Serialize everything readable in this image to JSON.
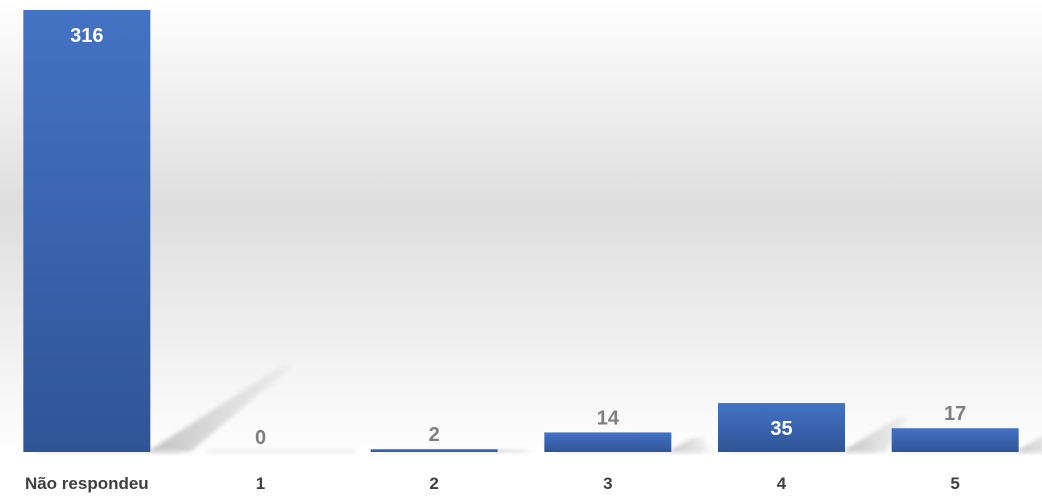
{
  "chart_data": {
    "type": "bar",
    "categories": [
      "Não respondeu",
      "1",
      "2",
      "3",
      "4",
      "5"
    ],
    "values": [
      316,
      0,
      2,
      14,
      35,
      17
    ],
    "title": "",
    "xlabel": "",
    "ylabel": "",
    "ylim": [
      0,
      316
    ],
    "grid": false,
    "legend": "none",
    "colors": {
      "bar_top": "#4472c4",
      "bar_bottom": "#2f5597",
      "label_inside": "#ffffff",
      "label_outside": "#7f7f7f",
      "category_text": "#404040"
    }
  }
}
